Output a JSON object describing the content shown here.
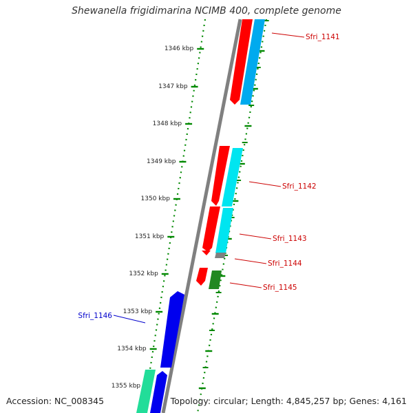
{
  "title": "Shewanella frigidimarina NCIMB 400, complete genome",
  "footer": {
    "accession": "Accession: NC_008345",
    "summary": "Topology: circular; Length: 4,845,257 bp; Genes: 4,161"
  },
  "scale": {
    "unit": "kbp",
    "ticks": [
      "1346",
      "1347",
      "1348",
      "1349",
      "1350",
      "1351",
      "1352",
      "1353",
      "1354",
      "1355"
    ]
  },
  "genes": [
    {
      "label": "Sfri_1141",
      "strand": "+",
      "color": "#ff0000",
      "partner_color": "#00aaee",
      "label_color": "#cc0000"
    },
    {
      "label": "Sfri_1142",
      "strand": "+",
      "color": "#ff0000",
      "partner_color": "#00e5f0",
      "label_color": "#cc0000"
    },
    {
      "label": "Sfri_1143",
      "strand": "+",
      "color": "#ff0000",
      "partner_color": "#00e5f0",
      "label_color": "#cc0000"
    },
    {
      "label": "Sfri_1144",
      "strand": "+",
      "color": "#808080",
      "partner_color": "#808080",
      "label_color": "#cc0000"
    },
    {
      "label": "Sfri_1145",
      "strand": "+",
      "color": "#ff0000",
      "partner_color": "#228822",
      "label_color": "#cc0000"
    },
    {
      "label": "Sfri_1146",
      "strand": "-",
      "color": "#0000ee",
      "partner_color": "#0000ee",
      "label_color": "#0000cc"
    }
  ],
  "colors": {
    "backbone": "#808080",
    "tick_marks": "#008800",
    "forward_gene": "#ff0000",
    "reverse_gene": "#0000ee",
    "label_red": "#cc0000",
    "label_blue": "#0000cc"
  }
}
